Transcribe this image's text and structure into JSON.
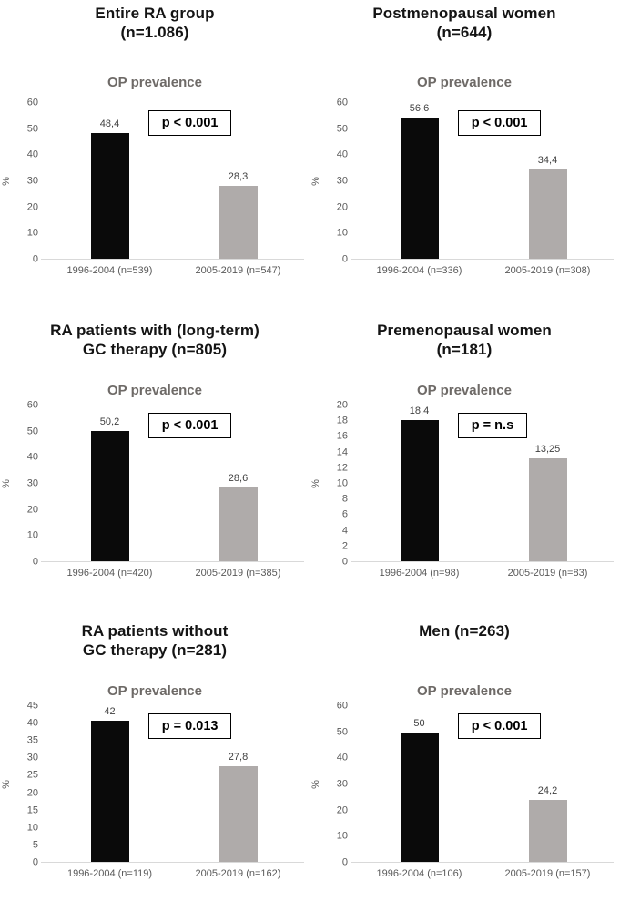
{
  "figure": {
    "background": "#ffffff",
    "layout": "2 columns x 3 rows of bar charts"
  },
  "colors": {
    "bar_1996_2004": "#0a0a0a",
    "bar_2005_2019": "#afabaa",
    "subtitle_text": "#6e6a67",
    "axis_text": "#595959",
    "value_label_text": "#3f3f3f",
    "baseline": "#d9d9d9",
    "p_box_border": "#000000"
  },
  "chart_data": [
    {
      "type": "bar",
      "title": "Entire RA group\n(n=1.086)",
      "subtitle": "OP prevalence",
      "ylabel": "%",
      "ylim": [
        0,
        60
      ],
      "ystep": 10,
      "grid": false,
      "categories": [
        "1996-2004 (n=539)",
        "2005-2019 (n=547)"
      ],
      "values": [
        48.4,
        28.3
      ],
      "value_labels": [
        "48,4",
        "28,3"
      ],
      "p_label": "p < 0.001"
    },
    {
      "type": "bar",
      "title": "Postmenopausal women\n(n=644)",
      "subtitle": "OP prevalence",
      "ylabel": "%",
      "ylim": [
        0,
        60
      ],
      "ystep": 10,
      "grid": false,
      "categories": [
        "1996-2004 (n=336)",
        "2005-2019 (n=308)"
      ],
      "values": [
        56.6,
        34.4
      ],
      "value_labels": [
        "56,6",
        "34,4"
      ],
      "p_label": "p < 0.001"
    },
    {
      "type": "bar",
      "title": "RA patients with (long-term)\nGC therapy (n=805)",
      "subtitle": "OP prevalence",
      "ylabel": "%",
      "ylim": [
        0,
        60
      ],
      "ystep": 10,
      "grid": false,
      "categories": [
        "1996-2004 (n=420)",
        "2005-2019 (n=385)"
      ],
      "values": [
        50.2,
        28.6
      ],
      "value_labels": [
        "50,2",
        "28,6"
      ],
      "p_label": "p < 0.001"
    },
    {
      "type": "bar",
      "title": "Premenopausal women\n(n=181)",
      "subtitle": "OP prevalence",
      "ylabel": "%",
      "ylim": [
        0,
        20
      ],
      "ystep": 2,
      "grid": false,
      "categories": [
        "1996-2004 (n=98)",
        "2005-2019 (n=83)"
      ],
      "values": [
        18.4,
        13.25
      ],
      "value_labels": [
        "18,4",
        "13,25"
      ],
      "p_label": "p = n.s"
    },
    {
      "type": "bar",
      "title": "RA patients without\nGC therapy (n=281)",
      "subtitle": "OP prevalence",
      "ylabel": "%",
      "ylim": [
        0,
        45
      ],
      "ystep": 5,
      "grid": false,
      "categories": [
        "1996-2004 (n=119)",
        "2005-2019 (n=162)"
      ],
      "values": [
        42,
        27.8
      ],
      "value_labels": [
        "42",
        "27,8"
      ],
      "p_label": "p = 0.013"
    },
    {
      "type": "bar",
      "title": "Men (n=263)",
      "subtitle": "OP prevalence",
      "ylabel": "%",
      "ylim": [
        0,
        60
      ],
      "ystep": 10,
      "grid": false,
      "categories": [
        "1996-2004 (n=106)",
        "2005-2019 (n=157)"
      ],
      "values": [
        50,
        24.2
      ],
      "value_labels": [
        "50",
        "24,2"
      ],
      "p_label": "p < 0.001"
    }
  ]
}
